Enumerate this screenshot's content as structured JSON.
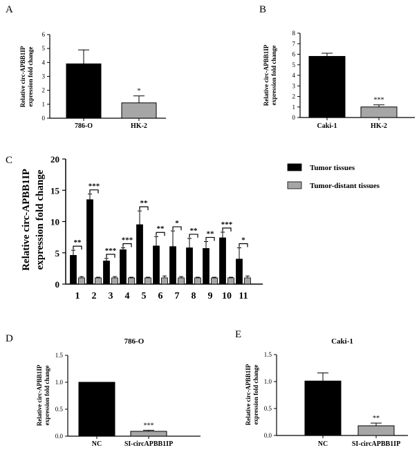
{
  "figure": {
    "panel_labels": [
      "A",
      "B",
      "C",
      "D",
      "E"
    ]
  },
  "colors": {
    "bar_primary": "#000000",
    "bar_secondary": "#a6a6a6",
    "axis": "#000000"
  },
  "chart_data": [
    {
      "panel": "A",
      "type": "bar",
      "title": "",
      "ylabel_line1": "Relative circ-APBB1IP",
      "ylabel_line2": "expression fold change",
      "ylim": [
        0,
        6
      ],
      "yticks": [
        0,
        1,
        2,
        3,
        4,
        5,
        6
      ],
      "ytick_labels": [
        "0",
        "1",
        "2",
        "3",
        "4",
        "5",
        "6"
      ],
      "categories": [
        "786-O",
        "HK-2"
      ],
      "values": [
        3.9,
        1.1
      ],
      "errors": [
        1.0,
        0.5
      ],
      "colors": [
        "#000000",
        "#a6a6a6"
      ],
      "significance": [
        "",
        "*"
      ]
    },
    {
      "panel": "B",
      "type": "bar",
      "title": "",
      "ylabel_line1": "Relative circ-APBB1IP",
      "ylabel_line2": "expression fold change",
      "ylim": [
        0,
        8
      ],
      "yticks": [
        0,
        1,
        2,
        3,
        4,
        5,
        6,
        7,
        8
      ],
      "ytick_labels": [
        "0",
        "1",
        "2",
        "3",
        "4",
        "5",
        "6",
        "7",
        "8"
      ],
      "categories": [
        "Caki-1",
        "HK-2"
      ],
      "values": [
        5.8,
        1.0
      ],
      "errors": [
        0.3,
        0.2
      ],
      "colors": [
        "#000000",
        "#a6a6a6"
      ],
      "significance": [
        "",
        "***"
      ]
    },
    {
      "panel": "C",
      "type": "bar",
      "title": "",
      "ylabel_line1": "Relative circ-APBB1IP",
      "ylabel_line2": "expression fold change",
      "ylim": [
        0,
        20
      ],
      "yticks": [
        0,
        5,
        10,
        15,
        20
      ],
      "ytick_labels": [
        "0",
        "5",
        "10",
        "15",
        "20"
      ],
      "categories": [
        "1",
        "2",
        "3",
        "4",
        "5",
        "6",
        "7",
        "8",
        "9",
        "10",
        "11"
      ],
      "series": [
        {
          "name": "Tumor tissues",
          "color": "#000000",
          "values": [
            4.6,
            13.5,
            3.7,
            5.5,
            9.5,
            6.1,
            6.0,
            5.8,
            5.7,
            7.4,
            4.0
          ],
          "errors": [
            0.8,
            0.9,
            0.4,
            0.3,
            2.2,
            1.5,
            2.5,
            1.5,
            1.1,
            0.9,
            1.8
          ]
        },
        {
          "name": "Tumor-distant tissues",
          "color": "#a6a6a6",
          "values": [
            1.0,
            1.0,
            1.0,
            1.0,
            1.0,
            1.0,
            1.0,
            1.0,
            1.0,
            1.0,
            1.0
          ],
          "errors": [
            0.2,
            0.1,
            0.2,
            0.1,
            0.1,
            0.3,
            0.2,
            0.1,
            0.1,
            0.1,
            0.3
          ]
        }
      ],
      "significance": [
        "**",
        "***",
        "***",
        "***",
        "**",
        "**",
        "*",
        "**",
        "**",
        "***",
        "*"
      ],
      "legend": [
        "Tumor tissues",
        "Tumor-distant tissues"
      ]
    },
    {
      "panel": "D",
      "type": "bar",
      "title": "786-O",
      "ylabel_line1": "Relative circ-APBB1IP",
      "ylabel_line2": "expression fold change",
      "ylim": [
        0,
        1.5
      ],
      "yticks": [
        0,
        0.5,
        1.0,
        1.5
      ],
      "ytick_labels": [
        "0.0",
        "0.5",
        "1.0",
        "1.5"
      ],
      "categories": [
        "NC",
        "SI-circAPBB1IP"
      ],
      "values": [
        1.0,
        0.09
      ],
      "errors": [
        0.0,
        0.02
      ],
      "colors": [
        "#000000",
        "#a6a6a6"
      ],
      "significance": [
        "",
        "***"
      ]
    },
    {
      "panel": "E",
      "type": "bar",
      "title": "Caki-1",
      "ylabel_line1": "Relative circ-APBB1IP",
      "ylabel_line2": "expression fold change",
      "ylim": [
        0,
        1.5
      ],
      "yticks": [
        0,
        0.5,
        1.0,
        1.5
      ],
      "ytick_labels": [
        "0.0",
        "0.5",
        "1.0",
        "1.5"
      ],
      "categories": [
        "NC",
        "SI-circAPBB1IP"
      ],
      "values": [
        1.01,
        0.18
      ],
      "errors": [
        0.15,
        0.05
      ],
      "colors": [
        "#000000",
        "#a6a6a6"
      ],
      "significance": [
        "",
        "**"
      ]
    }
  ]
}
